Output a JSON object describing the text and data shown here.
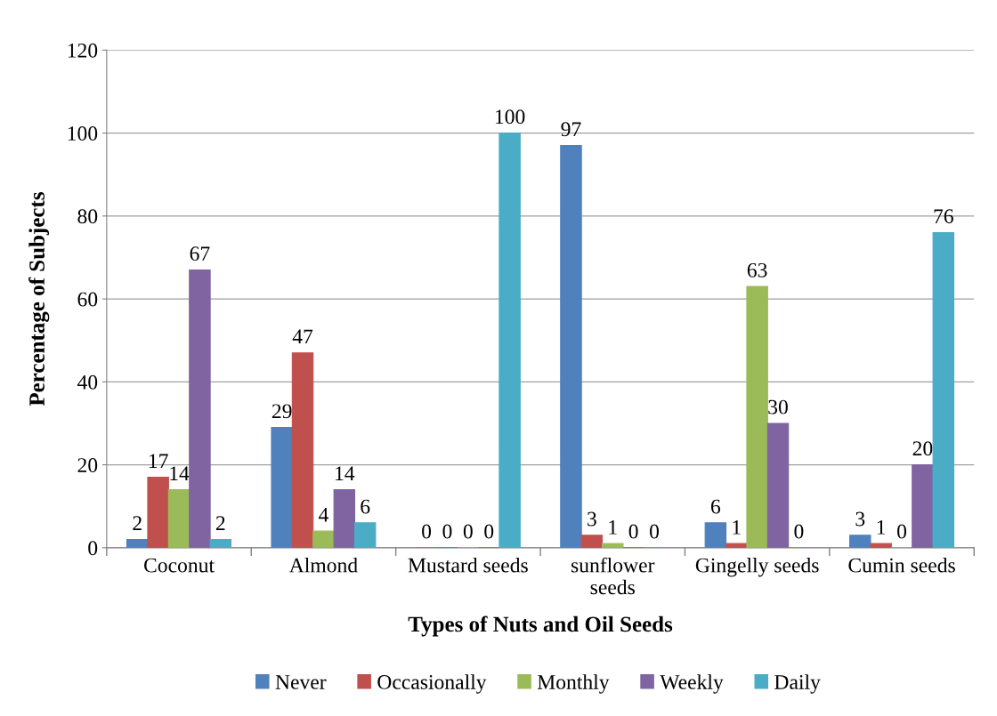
{
  "chart_data": {
    "type": "bar",
    "xlabel": "Types of Nuts and Oil Seeds",
    "ylabel": "Percentage of Subjects",
    "categories": [
      "Coconut",
      "Almond",
      "Mustard seeds",
      "sunflower seeds",
      "Gingelly seeds",
      "Cumin seeds"
    ],
    "series": [
      {
        "name": "Never",
        "color": "#4f81bd",
        "values": [
          2,
          29,
          0,
          97,
          6,
          3
        ]
      },
      {
        "name": "Occasionally",
        "color": "#c0504d",
        "values": [
          17,
          47,
          0,
          3,
          1,
          1
        ]
      },
      {
        "name": "Monthly",
        "color": "#9bbb59",
        "values": [
          14,
          4,
          0,
          1,
          63,
          0
        ]
      },
      {
        "name": "Weekly",
        "color": "#8064a2",
        "values": [
          67,
          14,
          0,
          0,
          30,
          20
        ]
      },
      {
        "name": "Daily",
        "color": "#4bacc6",
        "values": [
          2,
          6,
          100,
          0,
          0,
          76
        ]
      }
    ],
    "ylim": [
      0,
      120
    ],
    "yticks": [
      0,
      20,
      40,
      60,
      80,
      100,
      120
    ],
    "grid": "y",
    "legend": "bottom",
    "data_labels": true
  }
}
